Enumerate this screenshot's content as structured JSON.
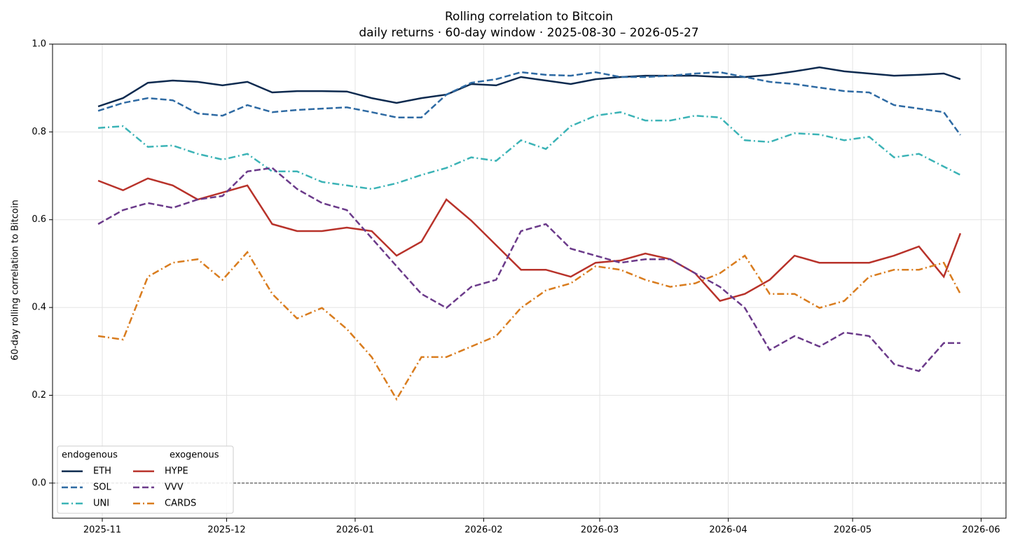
{
  "chart_data": {
    "type": "line",
    "title": "Rolling correlation to Bitcoin",
    "subtitle": "daily returns · 60-day window · 2025-08-30 – 2026-05-27",
    "y_label": "60-day rolling correlation to Bitcoin",
    "x": [
      "2025-10-31",
      "2025-11-06",
      "2025-11-12",
      "2025-11-18",
      "2025-11-24",
      "2025-11-30",
      "2025-12-06",
      "2025-12-12",
      "2025-12-18",
      "2025-12-24",
      "2025-12-30",
      "2026-01-05",
      "2026-01-11",
      "2026-01-17",
      "2026-01-23",
      "2026-01-29",
      "2026-02-04",
      "2026-02-10",
      "2026-02-16",
      "2026-02-22",
      "2026-02-28",
      "2026-03-06",
      "2026-03-12",
      "2026-03-18",
      "2026-03-24",
      "2026-03-30",
      "2026-04-05",
      "2026-04-11",
      "2026-04-17",
      "2026-04-23",
      "2026-04-29",
      "2026-05-05",
      "2026-05-11",
      "2026-05-17",
      "2026-05-23",
      "2026-05-27"
    ],
    "series": [
      {
        "name": "ETH",
        "color": "#0d2a4f",
        "dash": "solid",
        "values": [
          0.858,
          0.877,
          0.912,
          0.917,
          0.914,
          0.906,
          0.914,
          0.89,
          0.893,
          0.893,
          0.892,
          0.877,
          0.866,
          0.877,
          0.885,
          0.909,
          0.906,
          0.925,
          0.917,
          0.909,
          0.92,
          0.925,
          0.928,
          0.928,
          0.928,
          0.925,
          0.925,
          0.93,
          0.938,
          0.947,
          0.938,
          0.933,
          0.928,
          0.93,
          0.933,
          0.92
        ]
      },
      {
        "name": "SOL",
        "color": "#2e6aa3",
        "dash": "dashed",
        "values": [
          0.848,
          0.866,
          0.877,
          0.872,
          0.842,
          0.837,
          0.861,
          0.845,
          0.85,
          0.853,
          0.856,
          0.845,
          0.833,
          0.833,
          0.885,
          0.912,
          0.92,
          0.936,
          0.93,
          0.928,
          0.936,
          0.925,
          0.925,
          0.928,
          0.933,
          0.936,
          0.925,
          0.914,
          0.909,
          0.901,
          0.893,
          0.89,
          0.861,
          0.853,
          0.845,
          0.793
        ]
      },
      {
        "name": "UNI",
        "color": "#3bb3b6",
        "dash": "dashdot",
        "values": [
          0.809,
          0.813,
          0.766,
          0.769,
          0.75,
          0.737,
          0.75,
          0.71,
          0.71,
          0.686,
          0.678,
          0.67,
          0.683,
          0.702,
          0.718,
          0.742,
          0.734,
          0.781,
          0.761,
          0.813,
          0.837,
          0.845,
          0.826,
          0.826,
          0.837,
          0.833,
          0.781,
          0.777,
          0.797,
          0.794,
          0.781,
          0.789,
          0.742,
          0.75,
          0.721,
          0.702
        ]
      },
      {
        "name": "HYPE",
        "color": "#b8322a",
        "dash": "solid",
        "values": [
          0.689,
          0.667,
          0.694,
          0.678,
          0.646,
          0.662,
          0.678,
          0.59,
          0.574,
          0.574,
          0.582,
          0.574,
          0.518,
          0.55,
          0.646,
          0.598,
          0.542,
          0.486,
          0.486,
          0.47,
          0.502,
          0.507,
          0.523,
          0.51,
          0.478,
          0.415,
          0.431,
          0.463,
          0.518,
          0.502,
          0.502,
          0.502,
          0.518,
          0.539,
          0.47,
          0.569
        ]
      },
      {
        "name": "VVV",
        "color": "#6b3a8a",
        "dash": "dashed",
        "values": [
          0.59,
          0.622,
          0.638,
          0.627,
          0.646,
          0.654,
          0.71,
          0.718,
          0.67,
          0.638,
          0.622,
          0.558,
          0.494,
          0.431,
          0.399,
          0.447,
          0.463,
          0.574,
          0.59,
          0.534,
          0.518,
          0.502,
          0.51,
          0.51,
          0.478,
          0.447,
          0.399,
          0.303,
          0.335,
          0.311,
          0.343,
          0.335,
          0.271,
          0.255,
          0.319,
          0.319
        ]
      },
      {
        "name": "CARDS",
        "color": "#d97c1e",
        "dash": "dashdot",
        "values": [
          0.335,
          0.327,
          0.47,
          0.502,
          0.51,
          0.463,
          0.526,
          0.431,
          0.375,
          0.399,
          0.351,
          0.287,
          0.191,
          0.287,
          0.287,
          0.311,
          0.335,
          0.399,
          0.439,
          0.455,
          0.494,
          0.486,
          0.463,
          0.447,
          0.455,
          0.478,
          0.518,
          0.431,
          0.431,
          0.399,
          0.415,
          0.47,
          0.486,
          0.486,
          0.502,
          0.431
        ]
      }
    ],
    "xlim": [
      "2025-10-20",
      "2026-06-07"
    ],
    "xticks": [
      {
        "value": "2025-11-01",
        "label": "2025-11"
      },
      {
        "value": "2025-12-01",
        "label": "2025-12"
      },
      {
        "value": "2026-01-01",
        "label": "2026-01"
      },
      {
        "value": "2026-02-01",
        "label": "2026-02"
      },
      {
        "value": "2026-03-01",
        "label": "2026-03"
      },
      {
        "value": "2026-04-01",
        "label": "2026-04"
      },
      {
        "value": "2026-05-01",
        "label": "2026-05"
      },
      {
        "value": "2026-06-01",
        "label": "2026-06"
      }
    ],
    "ylim": [
      -0.08,
      1.0
    ],
    "yticks": [
      {
        "value": 0,
        "label": "0.0"
      },
      0.2,
      0.4,
      0.6,
      0.8,
      {
        "value": 1,
        "label": "1.0"
      }
    ],
    "reference_line": 0,
    "grid": true,
    "legend": {
      "loc": "lower left",
      "titles": [
        "endogenous",
        "exogenous"
      ]
    }
  }
}
